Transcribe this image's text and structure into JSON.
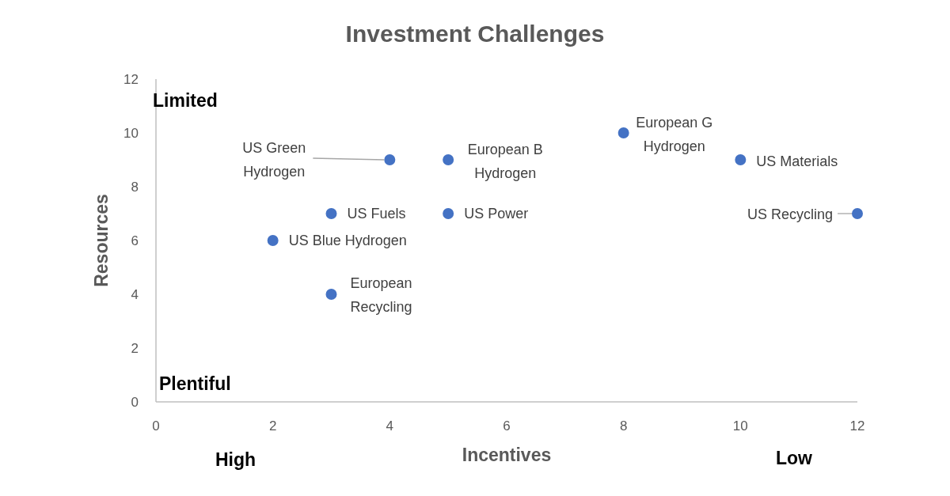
{
  "chart_data": {
    "type": "scatter",
    "title": "Investment Challenges",
    "xlabel": "Incentives",
    "ylabel": "Resources",
    "annotations": [
      "Limited",
      "Plentiful",
      "High",
      "Low"
    ],
    "series": [
      {
        "name": "US Green Hydrogen",
        "color": "#4472c4",
        "x": [
          4
        ],
        "values": [
          9
        ]
      },
      {
        "name": "European B Hydrogen",
        "color": "#4472c4",
        "x": [
          5
        ],
        "values": [
          9
        ]
      },
      {
        "name": "European G Hydrogen",
        "color": "#4472c4",
        "x": [
          8
        ],
        "values": [
          10
        ]
      },
      {
        "name": "US Materials",
        "color": "#4472c4",
        "x": [
          10
        ],
        "values": [
          9
        ]
      },
      {
        "name": "US Recycling",
        "color": "#4472c4",
        "x": [
          12
        ],
        "values": [
          7
        ]
      },
      {
        "name": "US Fuels",
        "color": "#4472c4",
        "x": [
          3
        ],
        "values": [
          7
        ]
      },
      {
        "name": "US Power",
        "color": "#4472c4",
        "x": [
          5
        ],
        "values": [
          7
        ]
      },
      {
        "name": "US Blue Hydrogen",
        "color": "#4472c4",
        "x": [
          2
        ],
        "values": [
          6
        ]
      },
      {
        "name": "European Recycling",
        "color": "#4472c4",
        "x": [
          3
        ],
        "values": [
          4
        ]
      }
    ],
    "xlim": [
      0,
      12
    ],
    "ylim": [
      0,
      12
    ],
    "xticks": [
      0,
      2,
      4,
      6,
      8,
      10,
      12
    ],
    "yticks": [
      0,
      2,
      4,
      6,
      8,
      10,
      12
    ],
    "marker": "circle",
    "grid": false,
    "legend": false
  }
}
